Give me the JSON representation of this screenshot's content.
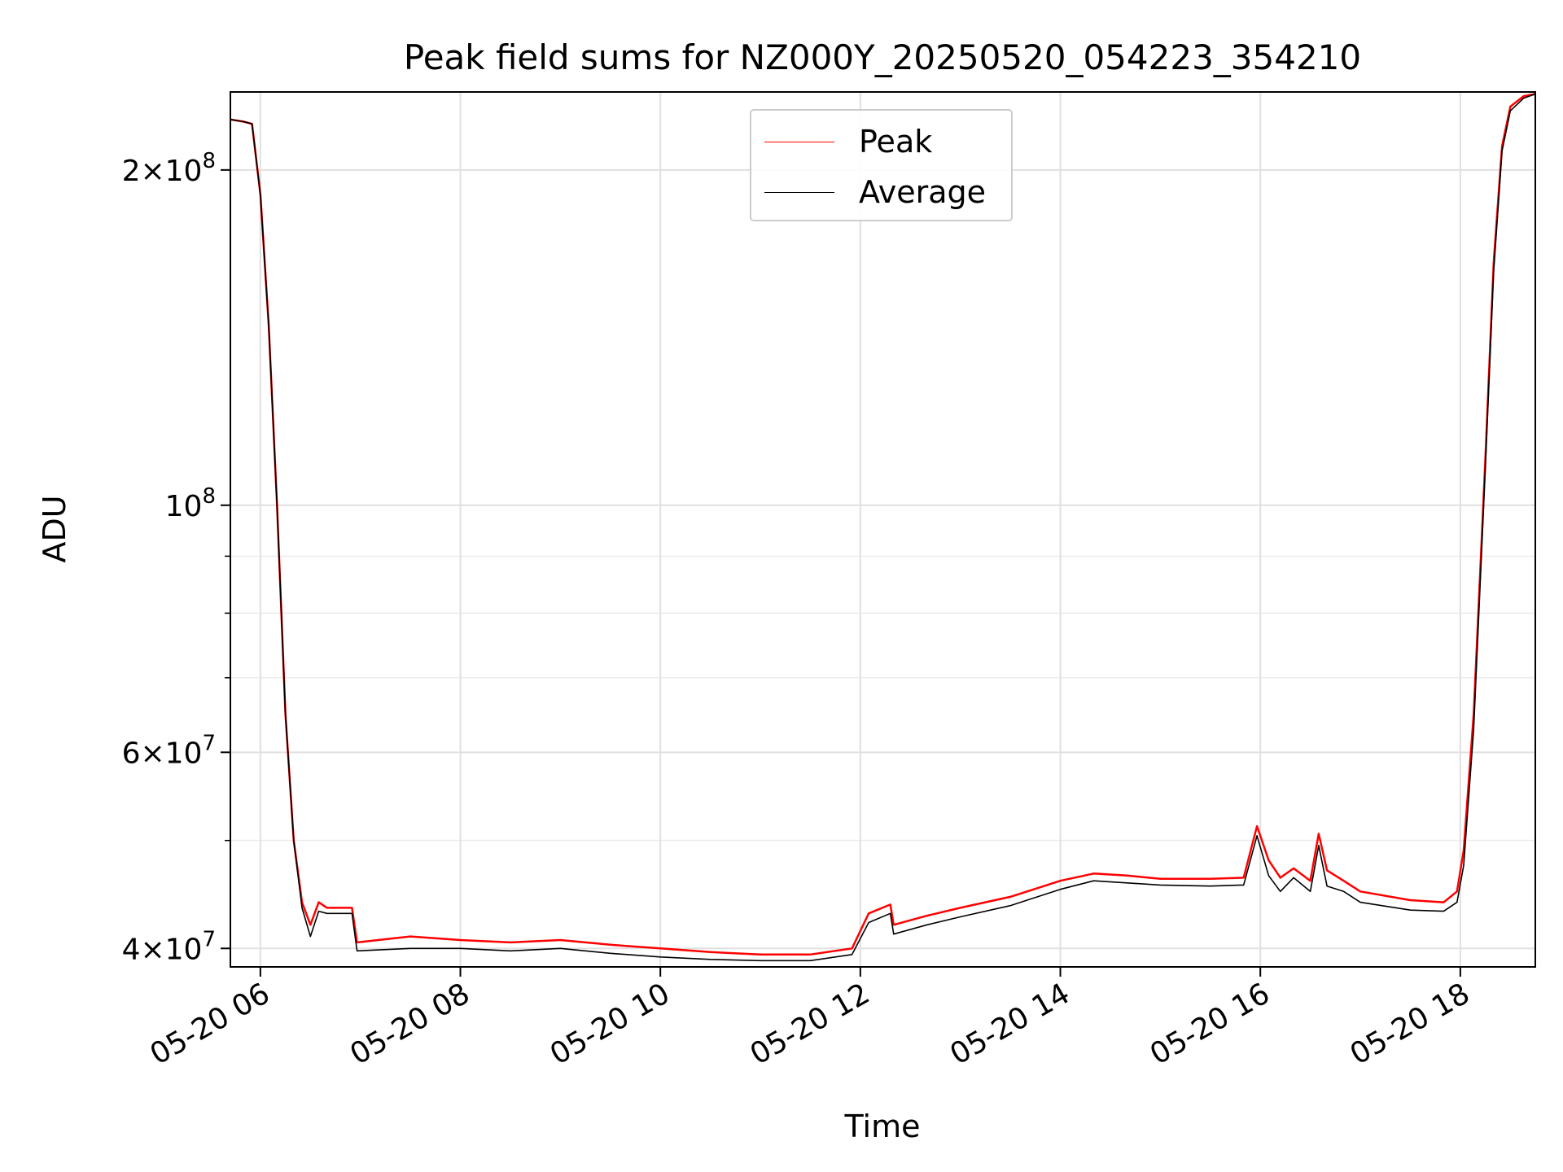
{
  "chart_data": {
    "type": "line",
    "title": "Peak field sums for NZ000Y_20250520_054223_354210",
    "xlabel": "Time",
    "ylabel": "ADU",
    "y_scale": "log",
    "xlim": [
      "2025-05-20 05:42",
      "2025-05-20 18:45"
    ],
    "ylim": [
      38500000,
      235000000
    ],
    "x_ticks": [
      "05-20 06",
      "05-20 08",
      "05-20 10",
      "05-20 12",
      "05-20 14",
      "05-20 16",
      "05-20 18"
    ],
    "y_ticks": [
      {
        "value": 40000000,
        "base": "4",
        "exp": "7"
      },
      {
        "value": 60000000,
        "base": "6",
        "exp": "7"
      },
      {
        "value": 100000000,
        "base": "",
        "exp": "8"
      },
      {
        "value": 200000000,
        "base": "2",
        "exp": "8"
      }
    ],
    "grid": true,
    "legend_position": "upper center",
    "series": [
      {
        "name": "Peak",
        "color": "#ff0000",
        "x": [
          "2025-05-20 05:42",
          "2025-05-20 05:50",
          "2025-05-20 05:55",
          "2025-05-20 06:00",
          "2025-05-20 06:05",
          "2025-05-20 06:10",
          "2025-05-20 06:15",
          "2025-05-20 06:20",
          "2025-05-20 06:25",
          "2025-05-20 06:30",
          "2025-05-20 06:35",
          "2025-05-20 06:40",
          "2025-05-20 06:55",
          "2025-05-20 06:58",
          "2025-05-20 07:30",
          "2025-05-20 08:00",
          "2025-05-20 08:30",
          "2025-05-20 09:00",
          "2025-05-20 09:30",
          "2025-05-20 10:00",
          "2025-05-20 10:30",
          "2025-05-20 11:00",
          "2025-05-20 11:30",
          "2025-05-20 11:55",
          "2025-05-20 12:05",
          "2025-05-20 12:18",
          "2025-05-20 12:20",
          "2025-05-20 12:40",
          "2025-05-20 13:00",
          "2025-05-20 13:30",
          "2025-05-20 14:00",
          "2025-05-20 14:20",
          "2025-05-20 14:40",
          "2025-05-20 15:00",
          "2025-05-20 15:30",
          "2025-05-20 15:50",
          "2025-05-20 15:58",
          "2025-05-20 16:05",
          "2025-05-20 16:12",
          "2025-05-20 16:20",
          "2025-05-20 16:30",
          "2025-05-20 16:35",
          "2025-05-20 16:40",
          "2025-05-20 16:50",
          "2025-05-20 17:00",
          "2025-05-20 17:30",
          "2025-05-20 17:50",
          "2025-05-20 17:58",
          "2025-05-20 18:02",
          "2025-05-20 18:08",
          "2025-05-20 18:15",
          "2025-05-20 18:20",
          "2025-05-20 18:25",
          "2025-05-20 18:30",
          "2025-05-20 18:38",
          "2025-05-20 18:45"
        ],
        "y": [
          222000000,
          221000000,
          220000000,
          190000000,
          145000000,
          100000000,
          65000000,
          50000000,
          44000000,
          42000000,
          44000000,
          43500000,
          43500000,
          40500000,
          41000000,
          40700000,
          40500000,
          40700000,
          40300000,
          40000000,
          39700000,
          39500000,
          39500000,
          40000000,
          43000000,
          43800000,
          42000000,
          42800000,
          43500000,
          44500000,
          46000000,
          46700000,
          46500000,
          46200000,
          46200000,
          46300000,
          51500000,
          48000000,
          46300000,
          47200000,
          46000000,
          50700000,
          47000000,
          46000000,
          45000000,
          44200000,
          44000000,
          45000000,
          49000000,
          65000000,
          110000000,
          165000000,
          210000000,
          228000000,
          233000000,
          234000000
        ]
      },
      {
        "name": "Average",
        "color": "#000000",
        "x": [
          "2025-05-20 05:42",
          "2025-05-20 05:50",
          "2025-05-20 05:55",
          "2025-05-20 06:00",
          "2025-05-20 06:05",
          "2025-05-20 06:10",
          "2025-05-20 06:15",
          "2025-05-20 06:20",
          "2025-05-20 06:25",
          "2025-05-20 06:30",
          "2025-05-20 06:35",
          "2025-05-20 06:40",
          "2025-05-20 06:55",
          "2025-05-20 06:58",
          "2025-05-20 07:30",
          "2025-05-20 08:00",
          "2025-05-20 08:30",
          "2025-05-20 09:00",
          "2025-05-20 09:30",
          "2025-05-20 10:00",
          "2025-05-20 10:30",
          "2025-05-20 11:00",
          "2025-05-20 11:30",
          "2025-05-20 11:55",
          "2025-05-20 12:05",
          "2025-05-20 12:18",
          "2025-05-20 12:20",
          "2025-05-20 12:40",
          "2025-05-20 13:00",
          "2025-05-20 13:30",
          "2025-05-20 14:00",
          "2025-05-20 14:20",
          "2025-05-20 14:40",
          "2025-05-20 15:00",
          "2025-05-20 15:30",
          "2025-05-20 15:50",
          "2025-05-20 15:58",
          "2025-05-20 16:05",
          "2025-05-20 16:12",
          "2025-05-20 16:20",
          "2025-05-20 16:30",
          "2025-05-20 16:35",
          "2025-05-20 16:40",
          "2025-05-20 16:50",
          "2025-05-20 17:00",
          "2025-05-20 17:30",
          "2025-05-20 17:50",
          "2025-05-20 17:58",
          "2025-05-20 18:02",
          "2025-05-20 18:08",
          "2025-05-20 18:15",
          "2025-05-20 18:20",
          "2025-05-20 18:25",
          "2025-05-20 18:30",
          "2025-05-20 18:38",
          "2025-05-20 18:45"
        ],
        "y": [
          222000000,
          221000000,
          220000000,
          190000000,
          145000000,
          100000000,
          65000000,
          50000000,
          43500000,
          41000000,
          43200000,
          43000000,
          43000000,
          39800000,
          40000000,
          40000000,
          39800000,
          40000000,
          39600000,
          39300000,
          39100000,
          39000000,
          39000000,
          39500000,
          42200000,
          43000000,
          41200000,
          42000000,
          42700000,
          43700000,
          45200000,
          46000000,
          45800000,
          45600000,
          45500000,
          45600000,
          50500000,
          46500000,
          45000000,
          46300000,
          45000000,
          49500000,
          45500000,
          45000000,
          44000000,
          43300000,
          43200000,
          44000000,
          47500000,
          63000000,
          108000000,
          162000000,
          208000000,
          226000000,
          232000000,
          234000000
        ]
      }
    ]
  }
}
